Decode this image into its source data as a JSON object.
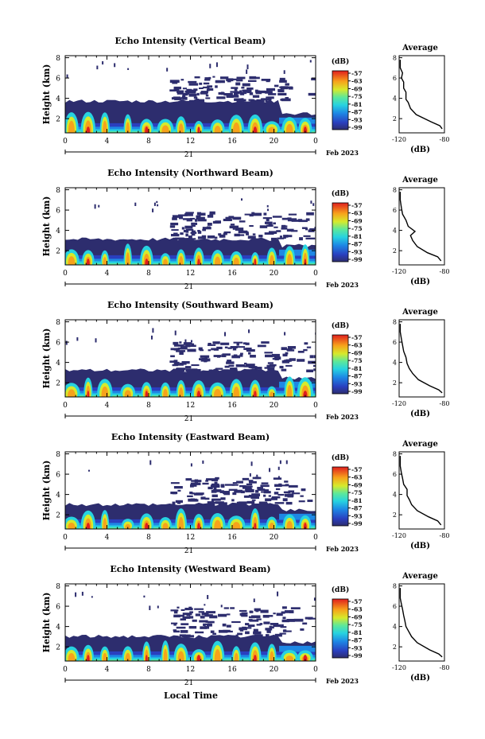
{
  "figure": {
    "month_label": "Feb 2023",
    "xaxis_title": "Local Time",
    "date_label": "21",
    "colorbar_unit": "(dB)",
    "average_title": "Average",
    "average_xlabel": "(dB)"
  },
  "chart_data": [
    {
      "type": "heatmap",
      "title": "Echo Intensity (Vertical Beam)",
      "ylabel": "Height (km)",
      "x_ticks": [
        "0",
        "4",
        "8",
        "12",
        "16",
        "20",
        "0"
      ],
      "y_ticks": [
        "2",
        "4",
        "6",
        "8"
      ],
      "xlim": [
        0,
        24
      ],
      "ylim": [
        0.6,
        8.2
      ],
      "colorbar": {
        "ticks": [
          "-57",
          "-63",
          "-69",
          "-75",
          "-81",
          "-87",
          "-93",
          "-99"
        ],
        "range": [
          -99,
          -57
        ]
      },
      "average": {
        "x_ticks": [
          "-120",
          "-80"
        ],
        "y_ticks": [
          "2",
          "4",
          "6",
          "8"
        ],
        "xlim": [
          -120,
          -80
        ],
        "profile": [
          [
            -82,
            1.0
          ],
          [
            -84,
            1.3
          ],
          [
            -92,
            1.7
          ],
          [
            -105,
            2.4
          ],
          [
            -110,
            3.0
          ],
          [
            -112,
            3.6
          ],
          [
            -114,
            3.9
          ],
          [
            -114,
            4.6
          ],
          [
            -116,
            5.0
          ],
          [
            -116,
            5.6
          ],
          [
            -118,
            6.0
          ],
          [
            -117,
            6.5
          ],
          [
            -119,
            7.0
          ],
          [
            -119,
            7.8
          ]
        ]
      },
      "clutter_top": 3.8,
      "haze_top": 6.2
    },
    {
      "type": "heatmap",
      "title": "Echo Intensity (Northward Beam)",
      "ylabel": "Height (km)",
      "x_ticks": [
        "0",
        "4",
        "8",
        "12",
        "16",
        "20",
        "0"
      ],
      "y_ticks": [
        "2",
        "4",
        "6",
        "8"
      ],
      "xlim": [
        0,
        24
      ],
      "ylim": [
        0.6,
        8.2
      ],
      "colorbar": {
        "ticks": [
          "-57",
          "-63",
          "-69",
          "-75",
          "-81",
          "-87",
          "-93",
          "-99"
        ],
        "range": [
          -99,
          -57
        ]
      },
      "average": {
        "x_ticks": [
          "-120",
          "-80"
        ],
        "y_ticks": [
          "2",
          "4",
          "6",
          "8"
        ],
        "xlim": [
          -120,
          -80
        ],
        "profile": [
          [
            -83,
            1.0
          ],
          [
            -86,
            1.4
          ],
          [
            -95,
            1.8
          ],
          [
            -104,
            2.4
          ],
          [
            -108,
            3.0
          ],
          [
            -110,
            3.5
          ],
          [
            -106,
            3.9
          ],
          [
            -112,
            4.4
          ],
          [
            -114,
            5.0
          ],
          [
            -117,
            5.6
          ],
          [
            -118,
            6.2
          ],
          [
            -119,
            7.0
          ],
          [
            -119,
            7.8
          ]
        ]
      },
      "clutter_top": 3.2,
      "haze_top": 5.9
    },
    {
      "type": "heatmap",
      "title": "Echo Intensity (Southward Beam)",
      "ylabel": "Height (km)",
      "x_ticks": [
        "0",
        "4",
        "8",
        "12",
        "16",
        "20",
        "0"
      ],
      "y_ticks": [
        "2",
        "4",
        "6",
        "8"
      ],
      "xlim": [
        0,
        24
      ],
      "ylim": [
        0.6,
        8.2
      ],
      "colorbar": {
        "ticks": [
          "-57",
          "-63",
          "-69",
          "-75",
          "-81",
          "-87",
          "-93",
          "-99"
        ],
        "range": [
          -99,
          -57
        ]
      },
      "average": {
        "x_ticks": [
          "-120",
          "-80"
        ],
        "y_ticks": [
          "2",
          "4",
          "6",
          "8"
        ],
        "xlim": [
          -120,
          -80
        ],
        "profile": [
          [
            -82,
            1.0
          ],
          [
            -85,
            1.3
          ],
          [
            -93,
            1.7
          ],
          [
            -103,
            2.3
          ],
          [
            -108,
            2.9
          ],
          [
            -111,
            3.4
          ],
          [
            -113,
            3.9
          ],
          [
            -114,
            4.5
          ],
          [
            -116,
            5.1
          ],
          [
            -117,
            5.7
          ],
          [
            -118,
            6.3
          ],
          [
            -119,
            7.0
          ],
          [
            -119,
            7.8
          ]
        ]
      },
      "clutter_top": 3.3,
      "haze_top": 6.1
    },
    {
      "type": "heatmap",
      "title": "Echo Intensity (Eastward Beam)",
      "ylabel": "Height (km)",
      "x_ticks": [
        "0",
        "4",
        "8",
        "12",
        "16",
        "20",
        "0"
      ],
      "y_ticks": [
        "2",
        "4",
        "6",
        "8"
      ],
      "xlim": [
        0,
        24
      ],
      "ylim": [
        0.6,
        8.2
      ],
      "colorbar": {
        "ticks": [
          "-57",
          "-63",
          "-69",
          "-75",
          "-81",
          "-87",
          "-93",
          "-99"
        ],
        "range": [
          -99,
          -57
        ]
      },
      "average": {
        "x_ticks": [
          "-120",
          "-80"
        ],
        "y_ticks": [
          "2",
          "4",
          "6",
          "8"
        ],
        "xlim": [
          -120,
          -80
        ],
        "profile": [
          [
            -83,
            1.0
          ],
          [
            -86,
            1.4
          ],
          [
            -94,
            1.8
          ],
          [
            -104,
            2.4
          ],
          [
            -109,
            3.0
          ],
          [
            -111,
            3.5
          ],
          [
            -113,
            3.9
          ],
          [
            -113,
            4.5
          ],
          [
            -116,
            5.0
          ],
          [
            -117,
            5.6
          ],
          [
            -118,
            6.1
          ],
          [
            -119,
            6.8
          ],
          [
            -119,
            7.8
          ]
        ]
      },
      "clutter_top": 3.1,
      "haze_top": 5.8
    },
    {
      "type": "heatmap",
      "title": "Echo Intensity (Westward Beam)",
      "ylabel": "Height (km)",
      "x_ticks": [
        "0",
        "4",
        "8",
        "12",
        "16",
        "20",
        "0"
      ],
      "y_ticks": [
        "2",
        "4",
        "6",
        "8"
      ],
      "xlim": [
        0,
        24
      ],
      "ylim": [
        0.6,
        8.2
      ],
      "colorbar": {
        "ticks": [
          "-57",
          "-63",
          "-69",
          "-75",
          "-81",
          "-87",
          "-93",
          "-99"
        ],
        "range": [
          -99,
          -57
        ]
      },
      "average": {
        "x_ticks": [
          "-120",
          "-80"
        ],
        "y_ticks": [
          "2",
          "4",
          "6",
          "8"
        ],
        "xlim": [
          -120,
          -80
        ],
        "profile": [
          [
            -82,
            1.0
          ],
          [
            -85,
            1.3
          ],
          [
            -93,
            1.7
          ],
          [
            -104,
            2.4
          ],
          [
            -109,
            3.0
          ],
          [
            -112,
            3.6
          ],
          [
            -114,
            4.0
          ],
          [
            -115,
            4.6
          ],
          [
            -116,
            5.1
          ],
          [
            -117,
            5.7
          ],
          [
            -118,
            6.2
          ],
          [
            -119,
            6.8
          ],
          [
            -119,
            7.8
          ]
        ]
      },
      "clutter_top": 3.1,
      "haze_top": 6.0
    }
  ]
}
